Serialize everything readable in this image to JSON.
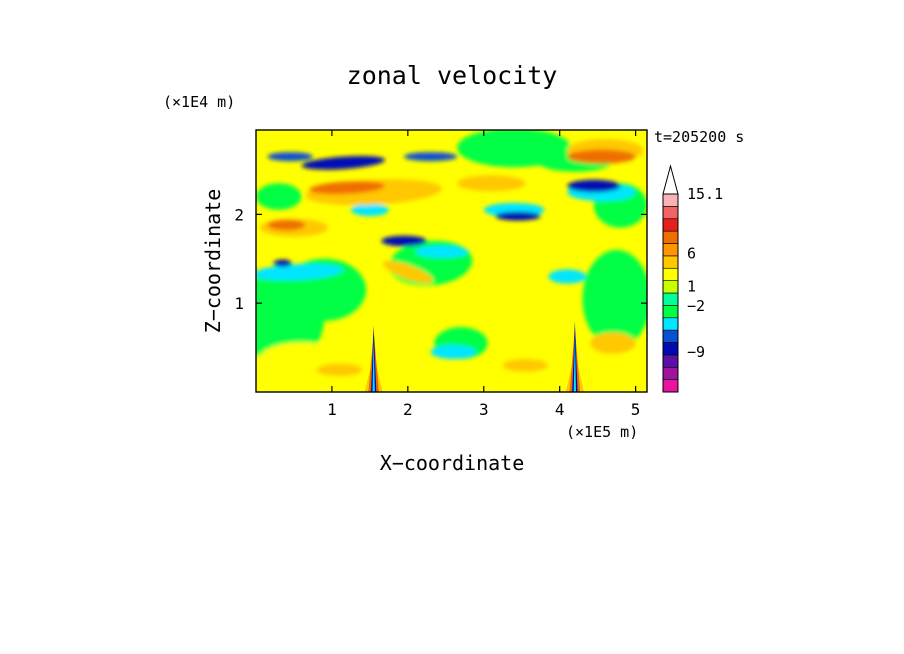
{
  "chart_data": {
    "type": "heatmap",
    "title": "zonal velocity",
    "xlabel": "X−coordinate",
    "ylabel": "Z−coordinate",
    "x_unit_note": "(×1E5 m)",
    "y_unit_note": "(×1E4 m)",
    "time_label": "t=205200 s",
    "xlim": [
      0,
      5.15
    ],
    "ylim": [
      0,
      2.95
    ],
    "x_ticks": [
      1,
      2,
      3,
      4,
      5
    ],
    "y_ticks": [
      1,
      2
    ],
    "x_tick_labels": [
      "1",
      "2",
      "3",
      "4",
      "5"
    ],
    "y_tick_labels": [
      "1",
      "2"
    ],
    "colorbar": {
      "labels": [
        {
          "text": "15.1",
          "value": 15.1
        },
        {
          "text": "6",
          "value": 6
        },
        {
          "text": "1",
          "value": 1
        },
        {
          "text": "−2",
          "value": -2
        },
        {
          "text": "−9",
          "value": -9
        }
      ],
      "colors": [
        "#e8139e",
        "#a0139e",
        "#5a0fa8",
        "#000ab4",
        "#0a50d2",
        "#00e6ff",
        "#00ff44",
        "#00ff9a",
        "#c8ff00",
        "#ffff00",
        "#ffc800",
        "#ff9600",
        "#f06e00",
        "#e61e1e",
        "#f06464",
        "#f8b4b4"
      ],
      "extend_max": true
    },
    "field_palette": {
      "strong_negative": "#000ab4",
      "moderate_negative": "#0a50d2",
      "weak_negative": "#00e6ff",
      "near_zero": "#00ff44",
      "weak_positive": "#ffff00",
      "moderate_positive": "#ffc800",
      "strong_positive": "#f06e00",
      "very_strong_positive": "#e61e1e"
    }
  }
}
